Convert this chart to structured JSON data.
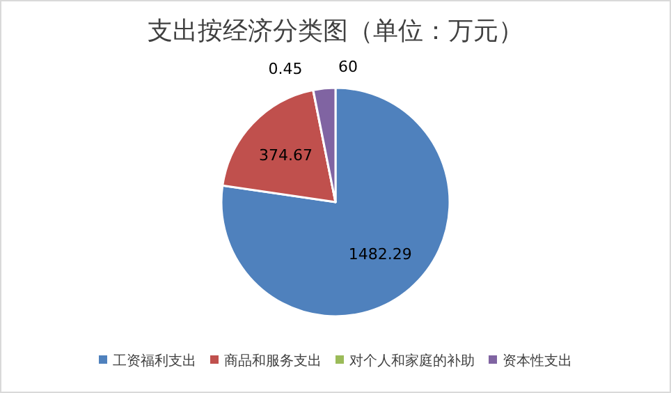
{
  "chart_data": {
    "type": "pie",
    "title": "支出按经济分类图（单位：万元）",
    "categories": [
      "工资福利支出",
      "商品和服务支出",
      "对个人和家庭的补助",
      "资本性支出"
    ],
    "values": [
      1482.29,
      374.67,
      0.45,
      60
    ],
    "colors": [
      "#4f81bd",
      "#c0504d",
      "#9bbb59",
      "#8064a2"
    ],
    "data_labels": true,
    "legend": "bottom"
  }
}
